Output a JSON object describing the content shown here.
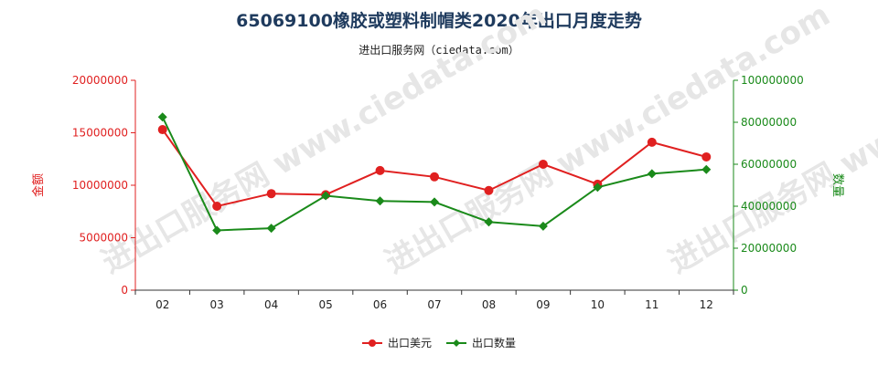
{
  "chart_data": {
    "type": "line",
    "title": "65069100橡胶或塑料制帽类2020年出口月度走势",
    "subtitle": "进出口服务网（ciedata.com）",
    "categories": [
      "02",
      "03",
      "04",
      "05",
      "06",
      "07",
      "08",
      "09",
      "10",
      "11",
      "12"
    ],
    "y_left": {
      "label": "金额",
      "lim": [
        0,
        20000000
      ],
      "ticks": [
        "0",
        "5000000",
        "10000000",
        "15000000",
        "20000000"
      ],
      "color": "#e02020"
    },
    "y_right": {
      "label": "数量",
      "lim": [
        0,
        100000000
      ],
      "ticks": [
        "0",
        "20000000",
        "40000000",
        "60000000",
        "80000000",
        "100000000"
      ],
      "color": "#1a8a1a"
    },
    "series": [
      {
        "name": "出口美元",
        "axis": "left",
        "color": "#e02020",
        "marker": "circle",
        "values": [
          15300000,
          8000000,
          9200000,
          9100000,
          11400000,
          10800000,
          9500000,
          12000000,
          10100000,
          14100000,
          12700000
        ]
      },
      {
        "name": "出口数量",
        "axis": "right",
        "color": "#1a8a1a",
        "marker": "diamond",
        "values": [
          82500000,
          28500000,
          29500000,
          45000000,
          42500000,
          42000000,
          32500000,
          30500000,
          49000000,
          55500000,
          57500000
        ]
      }
    ],
    "grid": false,
    "legend_position": "bottom-center",
    "watermark": "进出口服务网 www.ciedata.com"
  }
}
